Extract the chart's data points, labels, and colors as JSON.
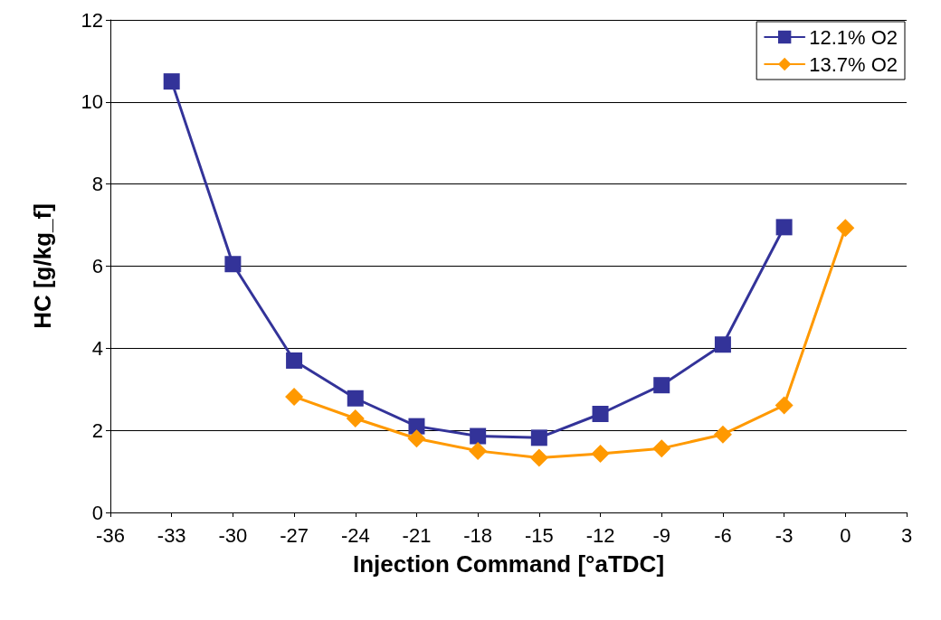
{
  "chart_data": {
    "type": "line",
    "xlabel": "Injection Command [°aTDC]",
    "ylabel": "HC [g/kg_f]",
    "xlim": [
      -36,
      3
    ],
    "xticks": [
      -36,
      -33,
      -30,
      -27,
      -24,
      -21,
      -18,
      -15,
      -12,
      -9,
      -6,
      -3,
      0,
      3
    ],
    "ylim": [
      0,
      12
    ],
    "yticks": [
      0,
      2,
      4,
      6,
      8,
      10,
      12
    ],
    "grid": "y",
    "legend": "top right",
    "series": [
      {
        "name": "12.1% O2",
        "color": "#333399",
        "marker": "square",
        "x": [
          -33,
          -30,
          -27,
          -24,
          -21,
          -18,
          -15,
          -12,
          -9,
          -6,
          -3
        ],
        "values": [
          10.5,
          6.05,
          3.7,
          2.78,
          2.1,
          1.86,
          1.82,
          2.4,
          3.1,
          4.09,
          6.95
        ]
      },
      {
        "name": "13.7% O2",
        "color": "#ff9900",
        "marker": "diamond",
        "x": [
          -27,
          -24,
          -21,
          -18,
          -15,
          -12,
          -9,
          -6,
          -3,
          0
        ],
        "values": [
          2.82,
          2.29,
          1.8,
          1.5,
          1.33,
          1.43,
          1.56,
          1.9,
          2.61,
          6.93
        ]
      }
    ]
  }
}
